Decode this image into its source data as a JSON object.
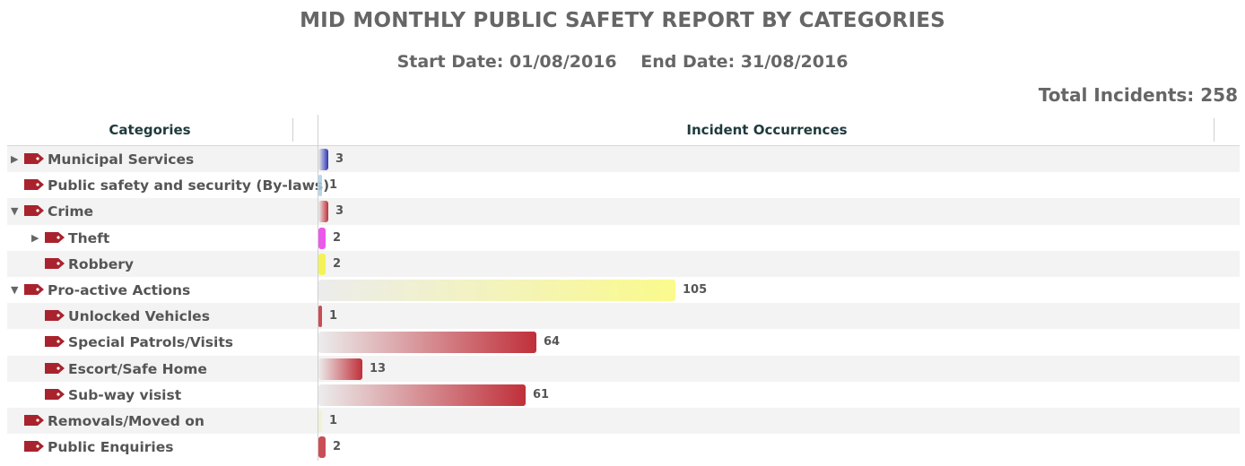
{
  "header": {
    "title": "MID MONTHLY PUBLIC SAFETY REPORT BY CATEGORIES",
    "start_date": "Start Date: 01/08/2016",
    "end_date": "End Date: 31/08/2016",
    "total": "Total Incidents: 258"
  },
  "table": {
    "col_categories": "Categories",
    "col_occurrences": "Incident Occurrences"
  },
  "chart_data": {
    "type": "bar",
    "orientation": "horizontal",
    "xlim": [
      0,
      105
    ],
    "categories": [
      "Municipal Services",
      "Public safety and security (By-laws)",
      "Crime",
      "Theft",
      "Robbery",
      "Pro-active Actions",
      "Unlocked Vehicles",
      "Special Patrols/Visits",
      "Escort/Safe Home",
      "Sub-way visist",
      "Removals/Moved on",
      "Public Enquiries"
    ],
    "values": [
      3,
      1,
      3,
      2,
      2,
      105,
      1,
      64,
      13,
      61,
      1,
      2
    ],
    "rows": [
      {
        "label": "Municipal Services",
        "value": 3,
        "level": 0,
        "toggle": "collapsed",
        "color": "#2e35b0"
      },
      {
        "label": "Public safety and security (By-laws)",
        "value": 1,
        "level": 0,
        "toggle": "none",
        "color": "#a9cfe6"
      },
      {
        "label": "Crime",
        "value": 3,
        "level": 0,
        "toggle": "expanded",
        "color": "#c0303a"
      },
      {
        "label": "Theft",
        "value": 2,
        "level": 1,
        "toggle": "collapsed",
        "color": "#e83ce8"
      },
      {
        "label": "Robbery",
        "value": 2,
        "level": 1,
        "toggle": "none",
        "color": "#f2f23a"
      },
      {
        "label": "Pro-active Actions",
        "value": 105,
        "level": 0,
        "toggle": "expanded",
        "color": "#fafa8c"
      },
      {
        "label": "Unlocked Vehicles",
        "value": 1,
        "level": 1,
        "toggle": "none",
        "color": "#c0303a"
      },
      {
        "label": "Special Patrols/Visits",
        "value": 64,
        "level": 1,
        "toggle": "none",
        "color": "#c0303a"
      },
      {
        "label": "Escort/Safe Home",
        "value": 13,
        "level": 1,
        "toggle": "none",
        "color": "#c0303a"
      },
      {
        "label": "Sub-way visist",
        "value": 61,
        "level": 1,
        "toggle": "none",
        "color": "#c0303a"
      },
      {
        "label": "Removals/Moved on",
        "value": 1,
        "level": 0,
        "toggle": "none",
        "color": "#f0f0d0"
      },
      {
        "label": "Public Enquiries",
        "value": 2,
        "level": 0,
        "toggle": "none",
        "color": "#c0303a"
      }
    ]
  },
  "icons": {
    "tag": "tag-icon",
    "expanded": "triangle-down-icon",
    "collapsed": "triangle-right-icon"
  },
  "colors": {
    "tag": "#a8232d",
    "header_text": "#1f3a3d"
  }
}
